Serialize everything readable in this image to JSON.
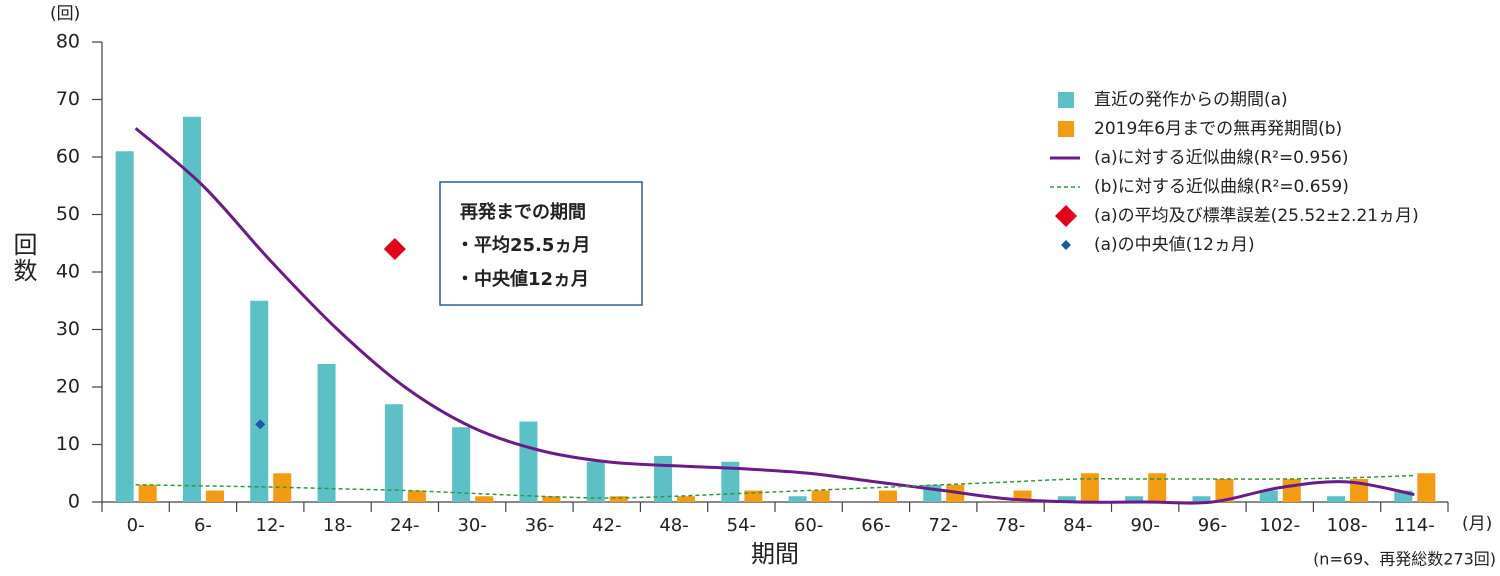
{
  "chart_data": {
    "type": "bar",
    "y_unit": "(回)",
    "y_label": "回数",
    "x_label": "期間",
    "x_unit": "(月)",
    "note": "(n=69、再発総数273回)",
    "annotation": {
      "title": "再発までの期間",
      "lines": [
        "・平均25.5ヵ月",
        "・中央値12ヵ月"
      ]
    },
    "categories": [
      "0-",
      "6-",
      "12-",
      "18-",
      "24-",
      "30-",
      "36-",
      "42-",
      "48-",
      "54-",
      "60-",
      "66-",
      "72-",
      "78-",
      "84-",
      "90-",
      "96-",
      "102-",
      "108-",
      "114-"
    ],
    "series": [
      {
        "name": "直近の発作からの期間(a)",
        "kind": "bar",
        "color": "#5bc1c6",
        "values": [
          61,
          67,
          35,
          24,
          17,
          13,
          14,
          7,
          8,
          7,
          1,
          0,
          3,
          0,
          1,
          1,
          1,
          2,
          1,
          2
        ]
      },
      {
        "name": "2019年6月までの無再発期間(b)",
        "kind": "bar",
        "color": "#f39c12",
        "values": [
          3,
          2,
          5,
          0,
          2,
          1,
          1,
          1,
          1,
          2,
          2,
          2,
          3,
          2,
          5,
          5,
          4,
          4,
          4,
          5
        ]
      },
      {
        "name": "(a)に対する近似曲線(R²=0.956)",
        "kind": "line",
        "color": "#6a1b8a",
        "dashed": false,
        "values": [
          65,
          55,
          42,
          30,
          20,
          13,
          9,
          7,
          6.3,
          5.8,
          5,
          3.5,
          2,
          0.5,
          0,
          0,
          0,
          2.5,
          3.5,
          1.3
        ]
      },
      {
        "name": "(b)に対する近似曲線(R²=0.659)",
        "kind": "line",
        "color": "#2e9a3e",
        "dashed": true,
        "values": [
          3,
          2.8,
          2.6,
          2.3,
          2,
          1.5,
          1,
          0.7,
          1,
          1.5,
          2,
          2.5,
          3,
          3.5,
          4,
          4,
          4,
          4,
          4.2,
          4.6
        ]
      },
      {
        "name": "(a)の平均及び標準誤差(25.52±2.21ヵ月)",
        "kind": "marker",
        "color": "#e3001b",
        "values": [
          null,
          null,
          null,
          null,
          44,
          null,
          null,
          null,
          null,
          null,
          null,
          null,
          null,
          null,
          null,
          null,
          null,
          null,
          null,
          null
        ]
      },
      {
        "name": "(a)の中央値(12ヵ月)",
        "kind": "marker",
        "color": "#1f56a8",
        "values": [
          null,
          null,
          13.5,
          null,
          null,
          null,
          null,
          null,
          null,
          null,
          null,
          null,
          null,
          null,
          null,
          null,
          null,
          null,
          null,
          null
        ]
      }
    ],
    "ylim": [
      0,
      80
    ],
    "yticks": [
      0,
      10,
      20,
      30,
      40,
      50,
      60,
      70,
      80
    ],
    "legend": "upper right"
  }
}
